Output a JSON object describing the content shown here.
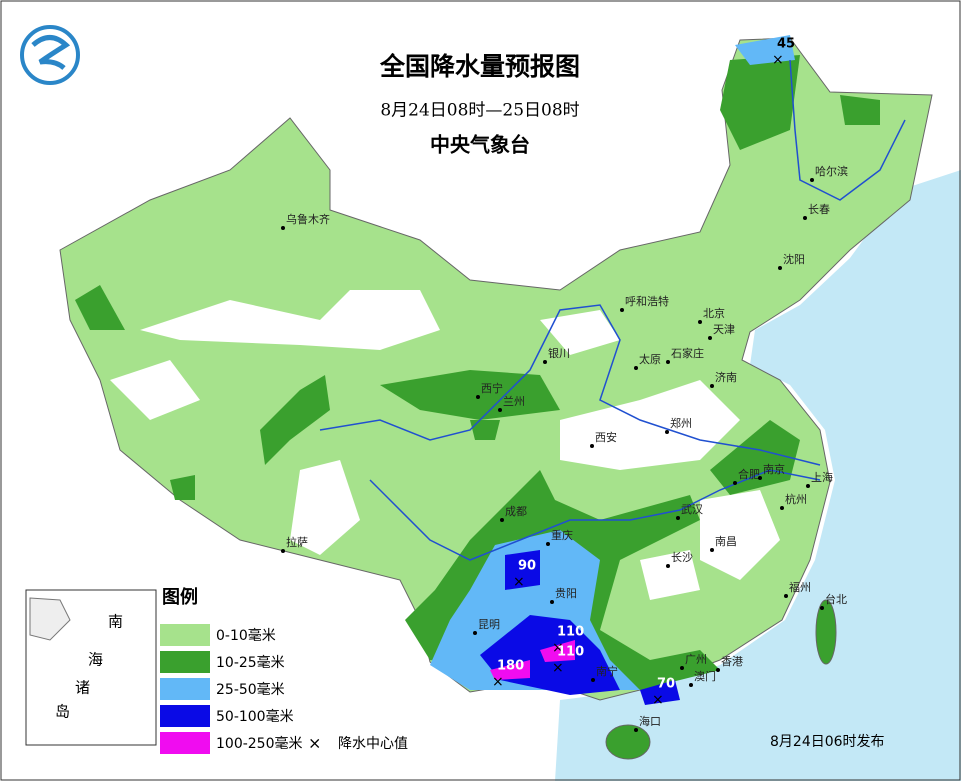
{
  "header": {
    "title": "全国降水量预报图",
    "period": "8月24日08时—25日08时",
    "issuer": "中央气象台"
  },
  "legend": {
    "title": "图例",
    "items": [
      {
        "label": "0-10毫米",
        "color": "#a6e28c"
      },
      {
        "label": "10-25毫米",
        "color": "#3aa02e"
      },
      {
        "label": "25-50毫米",
        "color": "#62b8f7"
      },
      {
        "label": "50-100毫米",
        "color": "#0a0ae6"
      },
      {
        "label": "100-250毫米",
        "color": "#f00cf0"
      }
    ],
    "center_marker": "降水中心值"
  },
  "cities": [
    "乌鲁木齐",
    "哈尔滨",
    "长春",
    "沈阳",
    "呼和浩特",
    "北京",
    "天津",
    "银川",
    "石家庄",
    "太原",
    "济南",
    "西宁",
    "兰州",
    "郑州",
    "西安",
    "合肥",
    "南京",
    "上海",
    "成都",
    "武汉",
    "杭州",
    "重庆",
    "拉萨",
    "南昌",
    "长沙",
    "贵阳",
    "福州",
    "台北",
    "昆明",
    "广州",
    "香港",
    "澳门",
    "南宁",
    "海口"
  ],
  "precipitation_centers": [
    45,
    90,
    110,
    110,
    180,
    70
  ],
  "inset": {
    "labels": [
      "南",
      "海",
      "诸",
      "岛"
    ]
  },
  "footer": "8月24日06时发布"
}
